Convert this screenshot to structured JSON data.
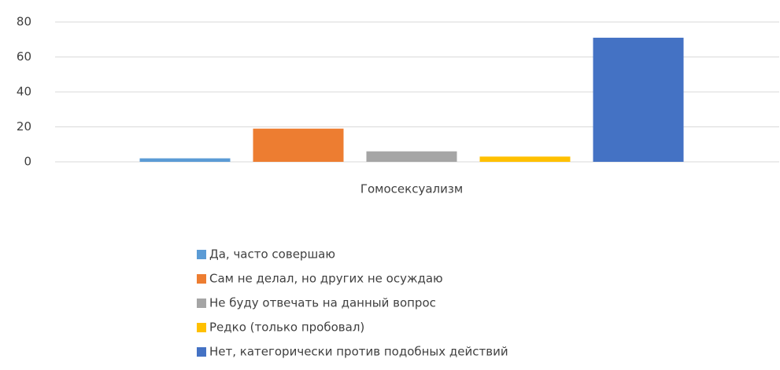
{
  "chart_data": {
    "type": "bar",
    "categories": [
      "Гомосексуализм"
    ],
    "series": [
      {
        "name": "Да, часто совершаю",
        "color": "#5b9bd5",
        "values": [
          2
        ]
      },
      {
        "name": "Сам не делал, но других не осуждаю",
        "color": "#ed7d31",
        "values": [
          19
        ]
      },
      {
        "name": "Не буду отвечать на данный вопрос",
        "color": "#a5a5a5",
        "values": [
          6
        ]
      },
      {
        "name": "Редко (только пробовал)",
        "color": "#ffc000",
        "values": [
          3
        ]
      },
      {
        "name": "Нет, категорически против подобных действий",
        "color": "#4472c4",
        "values": [
          71
        ]
      }
    ],
    "ylim": [
      0,
      80
    ],
    "yticks": [
      0,
      20,
      40,
      60,
      80
    ],
    "grid": true,
    "legend": "bottom"
  }
}
